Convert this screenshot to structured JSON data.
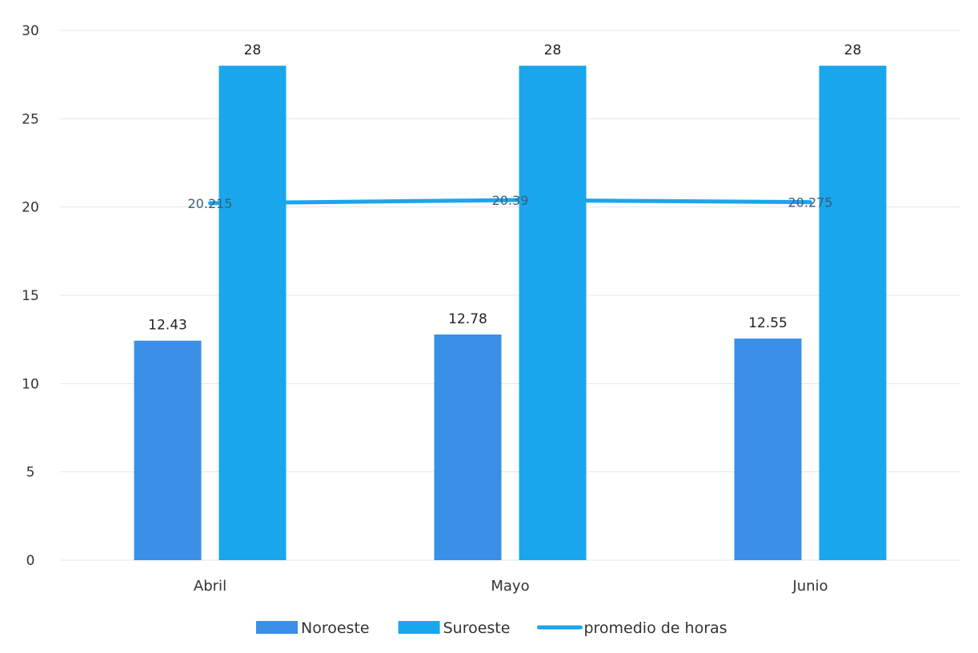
{
  "chart_data": {
    "type": "bar",
    "categories": [
      "Abril",
      "Mayo",
      "Junio"
    ],
    "series": [
      {
        "name": "Noroeste",
        "kind": "bar",
        "color": "#3a8fe6",
        "values": [
          12.43,
          12.78,
          12.55
        ],
        "labels": [
          "12.43",
          "12.78",
          "12.55"
        ]
      },
      {
        "name": "Suroeste",
        "kind": "bar",
        "color": "#1aa6ec",
        "values": [
          28,
          28,
          28
        ],
        "labels": [
          "28",
          "28",
          "28"
        ]
      },
      {
        "name": "promedio de horas",
        "kind": "line",
        "color": "#1aa6ec",
        "values": [
          20.215,
          20.39,
          20.275
        ],
        "labels": [
          "20.215",
          "20.39",
          "20.275"
        ]
      }
    ],
    "yticks": [
      "0",
      "5",
      "10",
      "15",
      "20",
      "25",
      "30"
    ],
    "ylim": [
      0,
      30
    ],
    "grid": true,
    "legend_position": "bottom"
  }
}
